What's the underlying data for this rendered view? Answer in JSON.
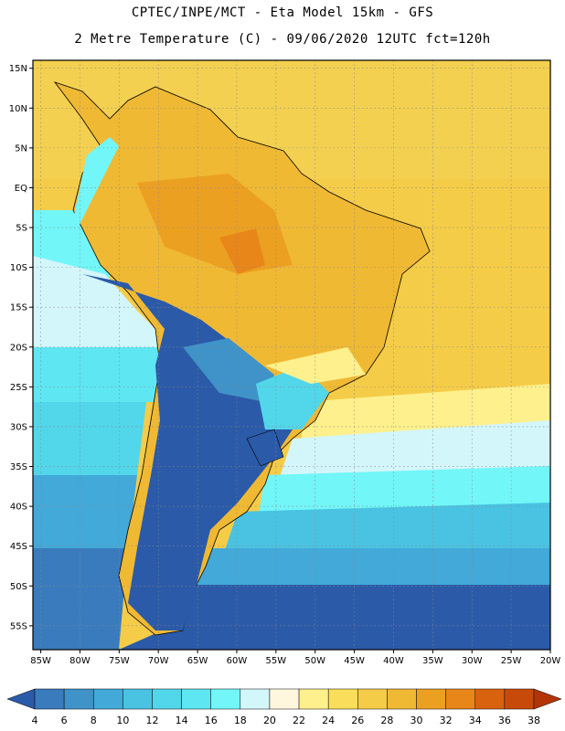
{
  "header": {
    "line1": "CPTEC/INPE/MCT -  Eta Model 15km - GFS",
    "line2": "2 Metre Temperature (C) - 09/06/2020 12UTC fct=120h"
  },
  "map": {
    "lat_labels": [
      "15N",
      "10N",
      "5N",
      "EQ",
      "5S",
      "10S",
      "15S",
      "20S",
      "25S",
      "30S",
      "35S",
      "40S",
      "45S",
      "50S",
      "55S"
    ],
    "lon_labels": [
      "85W",
      "80W",
      "75W",
      "70W",
      "65W",
      "60W",
      "55W",
      "50W",
      "45W",
      "40W",
      "35W",
      "30W",
      "25W",
      "20W"
    ],
    "lat_range": [
      16,
      -58
    ],
    "lon_range": [
      -86,
      -20
    ]
  },
  "colorbar": {
    "ticks": [
      "4",
      "6",
      "8",
      "10",
      "12",
      "14",
      "16",
      "18",
      "20",
      "22",
      "24",
      "26",
      "28",
      "30",
      "32",
      "34",
      "36",
      "38"
    ],
    "colors": [
      "#2b5aa8",
      "#3a7bbd",
      "#3f93c8",
      "#42a9d8",
      "#4ac3e2",
      "#52d6ea",
      "#5ee6f2",
      "#72f6f8",
      "#d3f6fb",
      "#fef7de",
      "#fef08c",
      "#fadd5a",
      "#f5cc48",
      "#f0b934",
      "#eca022",
      "#e8861a",
      "#d9620e",
      "#c84a0a",
      "#b33506"
    ]
  }
}
